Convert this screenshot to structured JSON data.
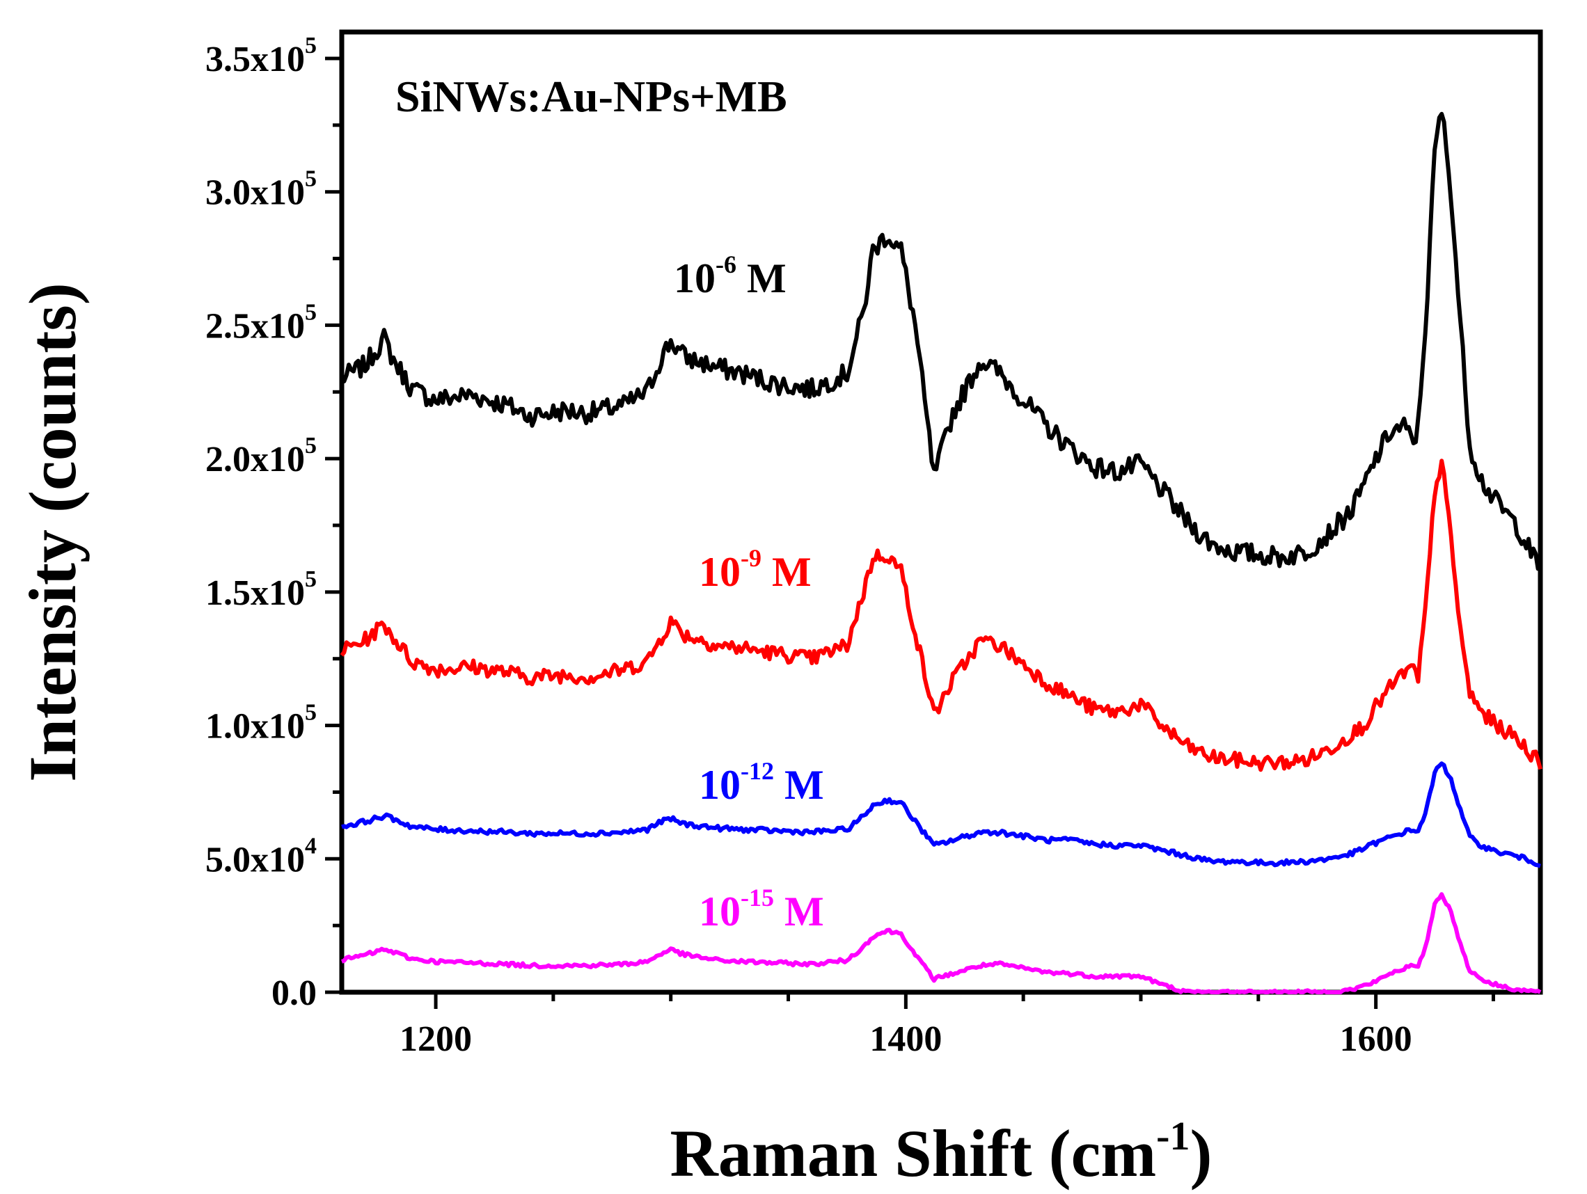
{
  "chart_data": {
    "type": "line",
    "title": "SiNWs:Au-NPs+MB",
    "xlabel_main": "Raman Shift (cm",
    "xlabel_sup": "-1",
    "xlabel_end": ")",
    "ylabel": "Intensity (counts)",
    "xlim": [
      1160,
      1670
    ],
    "ylim": [
      0,
      350000
    ],
    "grid": false,
    "x_ticks": [
      {
        "value": 1200,
        "label": "1200"
      },
      {
        "value": 1400,
        "label": "1400"
      },
      {
        "value": 1600,
        "label": "1600"
      }
    ],
    "y_ticks": [
      {
        "value": 0,
        "mant": "0.0",
        "exp": ""
      },
      {
        "value": 50000,
        "mant": "5.0x10",
        "exp": "4"
      },
      {
        "value": 100000,
        "mant": "1.0x10",
        "exp": "5"
      },
      {
        "value": 150000,
        "mant": "1.5x10",
        "exp": "5"
      },
      {
        "value": 200000,
        "mant": "2.0x10",
        "exp": "5"
      },
      {
        "value": 250000,
        "mant": "2.5x10",
        "exp": "5"
      },
      {
        "value": 300000,
        "mant": "3.0x10",
        "exp": "5"
      },
      {
        "value": 350000,
        "mant": "3.5x10",
        "exp": "5"
      }
    ],
    "series": [
      {
        "name": "10-6 M",
        "label_base": "10",
        "label_exp": "-6",
        "label_unit": " M",
        "color": "#000000",
        "x": [
          1160,
          1170,
          1178,
          1182,
          1190,
          1200,
          1215,
          1230,
          1240,
          1255,
          1265,
          1280,
          1290,
          1296,
          1300,
          1306,
          1320,
          1330,
          1345,
          1360,
          1375,
          1382,
          1386,
          1392,
          1398,
          1404,
          1412,
          1420,
          1432,
          1440,
          1450,
          1460,
          1470,
          1480,
          1490,
          1500,
          1510,
          1520,
          1530,
          1540,
          1550,
          1560,
          1570,
          1580,
          1590,
          1595,
          1600,
          1606,
          1612,
          1616,
          1618,
          1622,
          1625,
          1628,
          1632,
          1636,
          1640,
          1645,
          1650,
          1660,
          1670
        ],
        "y": [
          230000,
          235000,
          245000,
          237000,
          226000,
          222000,
          224000,
          220000,
          216000,
          218000,
          217000,
          220000,
          225000,
          238000,
          244000,
          238000,
          234000,
          232000,
          228000,
          226000,
          232000,
          255000,
          278000,
          284000,
          278000,
          250000,
          193000,
          217000,
          237000,
          232000,
          222000,
          212000,
          204000,
          197000,
          195000,
          198000,
          187000,
          176000,
          168000,
          165000,
          164000,
          163000,
          165000,
          172000,
          181000,
          190000,
          200000,
          210000,
          212000,
          206000,
          212000,
          262000,
          315000,
          331000,
          300000,
          250000,
          205000,
          192000,
          185000,
          175000,
          158000
        ]
      },
      {
        "name": "10-9 M",
        "label_base": "10",
        "label_exp": "-9",
        "label_unit": " M",
        "color": "#ff0000",
        "x": [
          1160,
          1170,
          1178,
          1182,
          1190,
          1200,
          1215,
          1230,
          1240,
          1255,
          1265,
          1280,
          1290,
          1296,
          1300,
          1306,
          1320,
          1330,
          1345,
          1360,
          1375,
          1382,
          1386,
          1392,
          1398,
          1404,
          1412,
          1420,
          1432,
          1440,
          1450,
          1460,
          1470,
          1480,
          1490,
          1500,
          1510,
          1520,
          1530,
          1540,
          1550,
          1560,
          1570,
          1580,
          1590,
          1595,
          1600,
          1606,
          1612,
          1616,
          1618,
          1622,
          1625,
          1628,
          1632,
          1636,
          1640,
          1645,
          1650,
          1660,
          1670
        ],
        "y": [
          128000,
          132000,
          138000,
          133000,
          124000,
          121000,
          122000,
          120000,
          118000,
          119000,
          118000,
          121000,
          124000,
          133000,
          139000,
          134000,
          130000,
          129000,
          127000,
          125000,
          130000,
          150000,
          163000,
          164000,
          158000,
          135000,
          104000,
          117000,
          132000,
          130000,
          123000,
          116000,
          111000,
          106000,
          105000,
          108000,
          99000,
          92000,
          88000,
          87000,
          86000,
          86000,
          87000,
          91000,
          97000,
          100000,
          107000,
          114000,
          120000,
          121000,
          117000,
          152000,
          188000,
          199000,
          170000,
          135000,
          112000,
          105000,
          101000,
          95000,
          86000
        ]
      },
      {
        "name": "10-12 M",
        "label_base": "10",
        "label_exp": "-12",
        "label_unit": " M",
        "color": "#0000ff",
        "x": [
          1160,
          1170,
          1178,
          1182,
          1190,
          1200,
          1215,
          1230,
          1240,
          1255,
          1265,
          1280,
          1290,
          1296,
          1300,
          1306,
          1320,
          1330,
          1345,
          1360,
          1375,
          1382,
          1386,
          1392,
          1398,
          1404,
          1412,
          1420,
          1432,
          1440,
          1450,
          1460,
          1470,
          1480,
          1490,
          1500,
          1510,
          1520,
          1530,
          1540,
          1550,
          1560,
          1570,
          1580,
          1590,
          1595,
          1600,
          1606,
          1612,
          1616,
          1618,
          1622,
          1625,
          1628,
          1632,
          1636,
          1640,
          1645,
          1650,
          1660,
          1670
        ],
        "y": [
          62000,
          64000,
          66000,
          65000,
          62000,
          61000,
          60500,
          60000,
          59500,
          59500,
          59500,
          60000,
          61000,
          64000,
          65000,
          63000,
          61500,
          61000,
          60500,
          60000,
          61000,
          66000,
          70000,
          72000,
          71000,
          64000,
          55000,
          57000,
          60000,
          60000,
          58500,
          57000,
          57000,
          55500,
          55000,
          55000,
          53000,
          51000,
          49000,
          49000,
          48500,
          48500,
          49000,
          50000,
          52000,
          54000,
          56000,
          58000,
          60000,
          61000,
          60000,
          70000,
          82000,
          86000,
          80000,
          68000,
          58000,
          55000,
          53000,
          51000,
          48000
        ]
      },
      {
        "name": "10-15 M",
        "label_base": "10",
        "label_exp": "-15",
        "label_unit": " M",
        "color": "#ff00ff",
        "x": [
          1160,
          1170,
          1178,
          1182,
          1190,
          1200,
          1215,
          1230,
          1240,
          1255,
          1265,
          1280,
          1290,
          1296,
          1300,
          1306,
          1320,
          1330,
          1345,
          1360,
          1375,
          1382,
          1386,
          1392,
          1398,
          1404,
          1412,
          1420,
          1432,
          1440,
          1450,
          1460,
          1470,
          1480,
          1490,
          1500,
          1510,
          1520,
          1530,
          1540,
          1550,
          1560,
          1570,
          1580,
          1590,
          1595,
          1600,
          1606,
          1612,
          1616,
          1618,
          1622,
          1625,
          1628,
          1632,
          1636,
          1640,
          1645,
          1650,
          1660,
          1670
        ],
        "y": [
          12000,
          14000,
          16000,
          15000,
          12500,
          11500,
          11000,
          10500,
          10000,
          10000,
          10000,
          10500,
          11500,
          14500,
          16000,
          14000,
          12000,
          11500,
          11000,
          10500,
          12000,
          17000,
          21000,
          23000,
          22000,
          14000,
          5000,
          7000,
          10000,
          10500,
          9000,
          7500,
          7000,
          6000,
          6000,
          6000,
          2500,
          0,
          0,
          0,
          0,
          0,
          0,
          0,
          1000,
          2500,
          4000,
          7000,
          9000,
          10000,
          9000,
          20000,
          33000,
          37000,
          30000,
          18000,
          8000,
          5000,
          3000,
          1000,
          0
        ]
      }
    ]
  }
}
